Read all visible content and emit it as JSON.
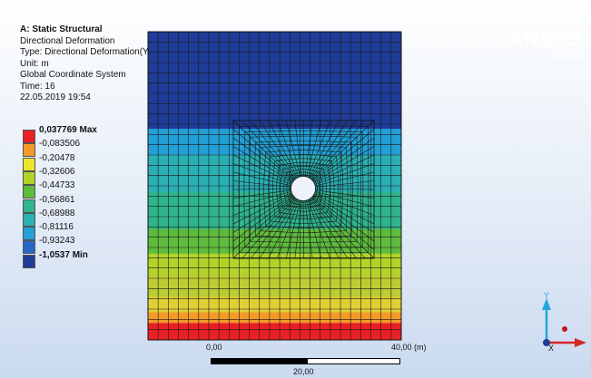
{
  "info": {
    "title": "A: Static Structural",
    "line1": "Directional Deformation",
    "line2": "Type: Directional Deformation(Y Axis)",
    "line3": "Unit: m",
    "line4": "Global Coordinate System",
    "line5": "Time: 16",
    "line6": "22.05.2019 19:54"
  },
  "legend": [
    {
      "label": "0,037769 Max",
      "color": "#e82126",
      "bold": true
    },
    {
      "label": "-0,083506",
      "color": "#f39a2a",
      "bold": false
    },
    {
      "label": "-0,20478",
      "color": "#ede42e",
      "bold": false
    },
    {
      "label": "-0,32606",
      "color": "#b4d32a",
      "bold": false
    },
    {
      "label": "-0,44733",
      "color": "#5fbb3e",
      "bold": false
    },
    {
      "label": "-0,56861",
      "color": "#2fb48c",
      "bold": false
    },
    {
      "label": "-0,68988",
      "color": "#2aafb3",
      "bold": false
    },
    {
      "label": "-0,81116",
      "color": "#239fd6",
      "bold": false
    },
    {
      "label": "-0,93243",
      "color": "#2667c8",
      "bold": false
    },
    {
      "label": "-1,0537 Min",
      "color": "#1f3c98",
      "bold": true
    }
  ],
  "brand": {
    "name": "ANSYS",
    "version": "R19.0"
  },
  "scale": {
    "left": "0,00",
    "right": "40,00 (m)",
    "mid": "20,00"
  },
  "axes": {
    "y": "Y",
    "x": "X"
  }
}
